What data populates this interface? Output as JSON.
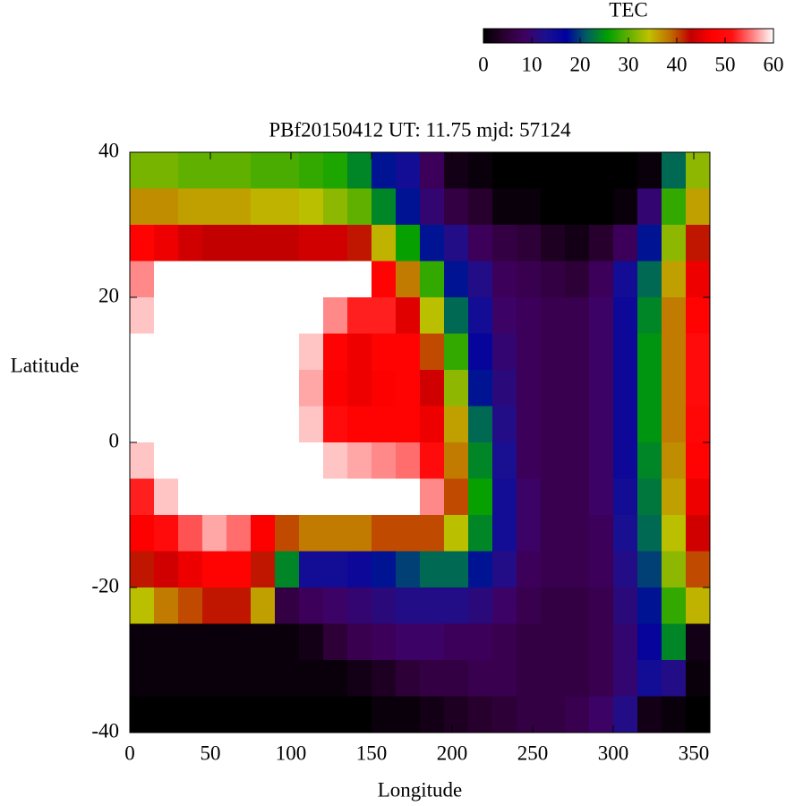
{
  "chart_data": {
    "type": "heatmap",
    "title": "PBf20150412  UT: 11.75  mjd: 57124",
    "xlabel": "Longitude",
    "ylabel": "Latitude",
    "xlim": [
      0,
      360
    ],
    "xticks": [
      0,
      50,
      100,
      150,
      200,
      250,
      300,
      350
    ],
    "ylim": [
      -40,
      40
    ],
    "yticks": [
      -40,
      -20,
      0,
      20,
      40
    ],
    "x": [
      7.5,
      22.5,
      37.5,
      52.5,
      67.5,
      82.5,
      97.5,
      112.5,
      127.5,
      142.5,
      157.5,
      172.5,
      187.5,
      202.5,
      217.5,
      232.5,
      247.5,
      262.5,
      277.5,
      292.5,
      307.5,
      322.5,
      337.5,
      352.5
    ],
    "y": [
      37.5,
      32.5,
      27.5,
      22.5,
      17.5,
      12.5,
      7.5,
      2.5,
      -2.5,
      -7.5,
      -12.5,
      -17.5,
      -22.5,
      -27.5,
      -32.5,
      -37.5
    ],
    "values": [
      [
        31,
        31,
        30,
        30,
        30,
        29,
        29,
        28,
        27,
        24,
        18,
        14,
        8,
        2,
        1,
        0,
        0,
        0,
        0,
        0,
        0,
        1,
        22,
        32
      ],
      [
        37,
        37,
        36,
        36,
        36,
        35,
        35,
        34,
        32,
        30,
        24,
        18,
        10,
        6,
        4,
        1,
        1,
        0,
        0,
        0,
        1,
        10,
        28,
        36
      ],
      [
        48,
        46,
        44,
        43,
        43,
        43,
        43,
        44,
        44,
        42,
        35,
        26,
        18,
        12,
        8,
        6,
        5,
        3,
        2,
        4,
        8,
        18,
        32,
        42
      ],
      [
        56,
        60,
        60,
        60,
        60,
        60,
        60,
        60,
        60,
        60,
        48,
        38,
        28,
        18,
        12,
        8,
        7,
        6,
        5,
        8,
        14,
        22,
        36,
        46
      ],
      [
        58,
        60,
        60,
        60,
        60,
        60,
        60,
        60,
        56,
        52,
        52,
        45,
        34,
        22,
        14,
        9,
        8,
        7,
        7,
        9,
        15,
        24,
        38,
        48
      ],
      [
        60,
        60,
        60,
        60,
        60,
        60,
        60,
        58,
        48,
        46,
        48,
        48,
        40,
        28,
        16,
        10,
        8,
        7,
        7,
        9,
        15,
        25,
        38,
        50
      ],
      [
        60,
        60,
        60,
        60,
        60,
        60,
        60,
        57,
        47,
        46,
        47,
        48,
        44,
        32,
        18,
        11,
        8,
        7,
        7,
        9,
        15,
        25,
        38,
        50
      ],
      [
        60,
        60,
        60,
        60,
        60,
        60,
        60,
        58,
        50,
        48,
        48,
        48,
        46,
        36,
        22,
        12,
        8,
        7,
        7,
        9,
        15,
        25,
        38,
        49
      ],
      [
        58,
        60,
        60,
        60,
        60,
        60,
        60,
        60,
        58,
        57,
        56,
        55,
        50,
        38,
        24,
        13,
        8,
        7,
        7,
        9,
        15,
        24,
        37,
        48
      ],
      [
        52,
        58,
        60,
        60,
        60,
        60,
        60,
        60,
        60,
        60,
        60,
        60,
        56,
        40,
        26,
        14,
        9,
        7,
        7,
        9,
        14,
        23,
        36,
        46
      ],
      [
        47,
        50,
        54,
        57,
        55,
        47,
        40,
        38,
        38,
        38,
        40,
        40,
        40,
        34,
        24,
        14,
        9,
        7,
        7,
        8,
        13,
        22,
        34,
        44
      ],
      [
        42,
        44,
        46,
        48,
        48,
        42,
        24,
        14,
        14,
        15,
        18,
        20,
        22,
        22,
        18,
        12,
        8,
        7,
        7,
        8,
        12,
        20,
        32,
        40
      ],
      [
        34,
        38,
        40,
        42,
        42,
        36,
        6,
        8,
        9,
        10,
        11,
        12,
        12,
        12,
        11,
        9,
        7,
        6,
        6,
        7,
        11,
        18,
        28,
        35
      ],
      [
        1,
        1,
        1,
        1,
        1,
        1,
        1,
        2,
        5,
        7,
        8,
        9,
        9,
        8,
        8,
        7,
        6,
        6,
        6,
        7,
        10,
        16,
        24,
        2
      ],
      [
        1,
        1,
        1,
        1,
        1,
        1,
        1,
        1,
        1,
        2,
        3,
        5,
        6,
        6,
        7,
        7,
        6,
        6,
        6,
        7,
        10,
        14,
        12,
        1
      ],
      [
        0,
        0,
        0,
        0,
        0,
        0,
        0,
        0,
        0,
        0,
        1,
        1,
        2,
        3,
        4,
        5,
        6,
        6,
        7,
        9,
        12,
        2,
        1,
        0
      ]
    ],
    "colorbar": {
      "label": "TEC",
      "lim": [
        0,
        60
      ],
      "ticks": [
        0,
        10,
        20,
        30,
        40,
        50,
        60
      ]
    },
    "colorscale": [
      "#000000",
      "#2a0030",
      "#400060",
      "#1a1090",
      "#0000a0",
      "#006060",
      "#00a000",
      "#60b000",
      "#c0c000",
      "#c07000",
      "#c00000",
      "#ff0000",
      "#ff1010",
      "#ff8080",
      "#ffffff"
    ]
  }
}
